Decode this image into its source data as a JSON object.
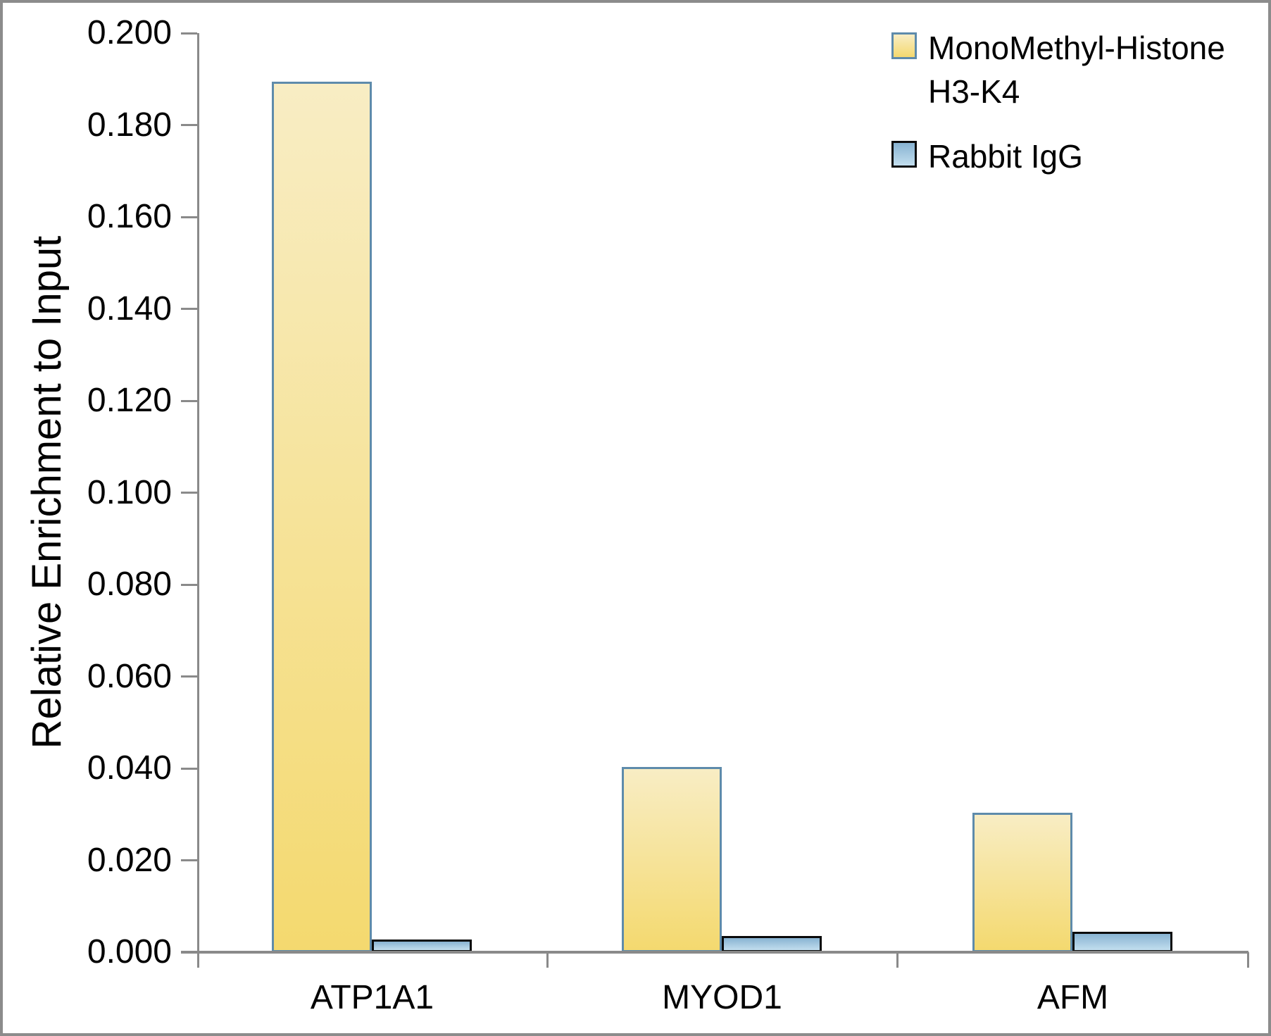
{
  "chart_data": {
    "type": "bar",
    "title": "",
    "ylabel": "Relative Enrichment to Input",
    "xlabel": "",
    "categories": [
      "ATP1A1",
      "MYOD1",
      "AFM"
    ],
    "series": [
      {
        "name": "MonoMethyl-Histone H3-K4",
        "values": [
          0.1895,
          0.0403,
          0.0303
        ],
        "fill_top": "#F8EDC4",
        "fill_bottom": "#F4D96F",
        "border": "#5E8BAB"
      },
      {
        "name": "Rabbit IgG",
        "values": [
          0.0027,
          0.0035,
          0.0044
        ],
        "fill_top": "#88B3D2",
        "fill_bottom": "#C2DEEE",
        "border": "#0A0A0A"
      }
    ],
    "ylim": [
      0.0,
      0.2
    ],
    "ytick_labels": [
      "0.000",
      "0.020",
      "0.040",
      "0.060",
      "0.080",
      "0.100",
      "0.120",
      "0.140",
      "0.160",
      "0.180",
      "0.200"
    ],
    "grid": false,
    "legend_position": "top-right",
    "axis_color": "#8A8A8A",
    "text_color": "#000000"
  }
}
